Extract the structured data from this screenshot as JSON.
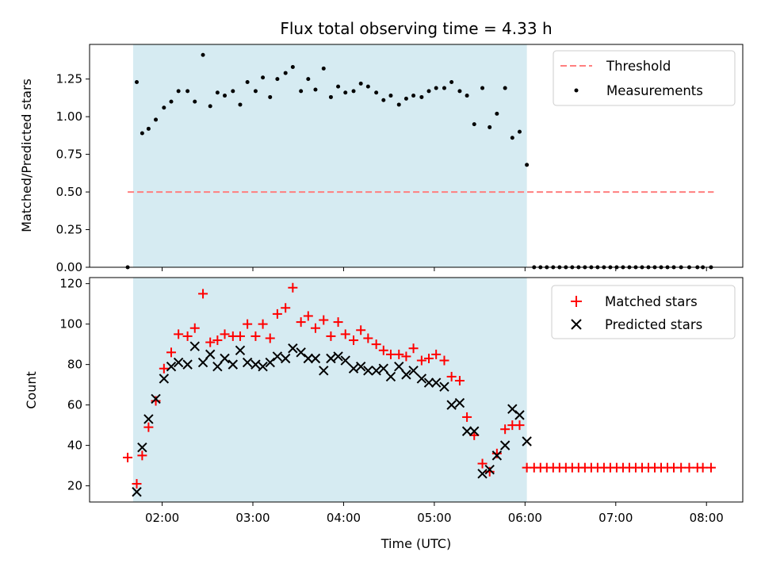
{
  "chart_data": [
    {
      "type": "scatter",
      "title": "Flux total observing time = 4.33 h",
      "ylabel": "Matched/Predicted stars",
      "xlabel": "",
      "xlim": [
        1.2,
        8.4
      ],
      "ylim": [
        0,
        1.48
      ],
      "yticks": [
        "0.00",
        "0.25",
        "0.50",
        "0.75",
        "1.00",
        "1.25"
      ],
      "yticks_values": [
        0,
        0.25,
        0.5,
        0.75,
        1.0,
        1.25
      ],
      "observing_window": [
        1.68,
        6.02
      ],
      "threshold": {
        "name": "Threshold",
        "value": 0.5,
        "x_range": [
          1.62,
          8.08
        ],
        "color": "#ff7f7f"
      },
      "series": [
        {
          "name": "Measurements",
          "color": "#000000",
          "marker": "dot",
          "x": [
            1.62,
            1.72,
            1.78,
            1.85,
            1.93,
            2.02,
            2.1,
            2.18,
            2.28,
            2.36,
            2.45,
            2.53,
            2.61,
            2.69,
            2.78,
            2.86,
            2.94,
            3.03,
            3.11,
            3.19,
            3.27,
            3.36,
            3.44,
            3.53,
            3.61,
            3.69,
            3.78,
            3.86,
            3.94,
            4.02,
            4.11,
            4.19,
            4.27,
            4.36,
            4.44,
            4.52,
            4.61,
            4.69,
            4.77,
            4.86,
            4.94,
            5.02,
            5.11,
            5.19,
            5.28,
            5.36,
            5.44,
            5.53,
            5.61,
            5.69,
            5.78,
            5.86,
            5.94,
            6.02
          ],
          "y": [
            0.0,
            1.23,
            0.89,
            0.92,
            0.98,
            1.06,
            1.1,
            1.17,
            1.17,
            1.1,
            1.41,
            1.07,
            1.16,
            1.14,
            1.17,
            1.08,
            1.23,
            1.17,
            1.26,
            1.13,
            1.25,
            1.29,
            1.33,
            1.17,
            1.25,
            1.18,
            1.32,
            1.13,
            1.2,
            1.16,
            1.17,
            1.22,
            1.2,
            1.16,
            1.11,
            1.14,
            1.08,
            1.12,
            1.14,
            1.13,
            1.17,
            1.19,
            1.19,
            1.23,
            1.17,
            1.14,
            0.95,
            1.19,
            0.93,
            1.02,
            1.19,
            0.86,
            0.9,
            0.68
          ]
        },
        {
          "name": "",
          "color": "#000000",
          "marker": "dot",
          "x": [
            6.1,
            6.17,
            6.24,
            6.31,
            6.38,
            6.45,
            6.52,
            6.59,
            6.66,
            6.73,
            6.8,
            6.87,
            6.94,
            7.01,
            7.08,
            7.15,
            7.22,
            7.29,
            7.36,
            7.43,
            7.5,
            7.57,
            7.64,
            7.72,
            7.81,
            7.9,
            7.96,
            8.05
          ],
          "y": [
            0,
            0,
            0,
            0,
            0,
            0,
            0,
            0,
            0,
            0,
            0,
            0,
            0,
            0,
            0,
            0,
            0,
            0,
            0,
            0,
            0,
            0,
            0,
            0,
            0,
            0,
            0,
            0
          ]
        }
      ],
      "legend_position": "upper-right"
    },
    {
      "type": "scatter",
      "title": "",
      "xlabel": "Time (UTC)",
      "ylabel": "Count",
      "xlim": [
        1.2,
        8.4
      ],
      "ylim": [
        12,
        123
      ],
      "xticks": [
        "02:00",
        "03:00",
        "04:00",
        "05:00",
        "06:00",
        "07:00",
        "08:00"
      ],
      "xticks_values": [
        2,
        3,
        4,
        5,
        6,
        7,
        8
      ],
      "yticks": [
        "20",
        "40",
        "60",
        "80",
        "100",
        "120"
      ],
      "yticks_values": [
        20,
        40,
        60,
        80,
        100,
        120
      ],
      "observing_window": [
        1.68,
        6.02
      ],
      "series": [
        {
          "name": "Matched stars",
          "color": "#ff0000",
          "marker": "plus",
          "x": [
            1.62,
            1.72,
            1.78,
            1.85,
            1.93,
            2.02,
            2.1,
            2.18,
            2.28,
            2.36,
            2.45,
            2.53,
            2.61,
            2.69,
            2.78,
            2.86,
            2.94,
            3.03,
            3.11,
            3.19,
            3.27,
            3.36,
            3.44,
            3.53,
            3.61,
            3.69,
            3.78,
            3.86,
            3.94,
            4.02,
            4.11,
            4.19,
            4.27,
            4.36,
            4.44,
            4.52,
            4.61,
            4.69,
            4.77,
            4.86,
            4.94,
            5.02,
            5.11,
            5.19,
            5.28,
            5.36,
            5.44,
            5.53,
            5.61,
            5.69,
            5.78,
            5.86,
            5.94,
            6.02,
            6.1,
            6.17,
            6.24,
            6.31,
            6.38,
            6.45,
            6.52,
            6.59,
            6.66,
            6.73,
            6.8,
            6.87,
            6.94,
            7.01,
            7.08,
            7.15,
            7.22,
            7.29,
            7.36,
            7.43,
            7.5,
            7.57,
            7.64,
            7.72,
            7.81,
            7.9,
            7.96,
            8.05
          ],
          "y": [
            34,
            21,
            35,
            49,
            62,
            78,
            86,
            95,
            94,
            98,
            115,
            91,
            92,
            95,
            94,
            94,
            100,
            94,
            100,
            93,
            105,
            108,
            118,
            101,
            104,
            98,
            102,
            94,
            101,
            95,
            92,
            97,
            93,
            90,
            87,
            85,
            85,
            84,
            88,
            82,
            83,
            85,
            82,
            74,
            72,
            54,
            45,
            31,
            27,
            36,
            48,
            50,
            50,
            29,
            29,
            29,
            29,
            29,
            29,
            29,
            29,
            29,
            29,
            29,
            29,
            29,
            29,
            29,
            29,
            29,
            29,
            29,
            29,
            29,
            29,
            29,
            29,
            29,
            29,
            29,
            29,
            29
          ]
        },
        {
          "name": "Predicted stars",
          "color": "#000000",
          "marker": "x",
          "x": [
            1.72,
            1.78,
            1.85,
            1.93,
            2.02,
            2.1,
            2.18,
            2.28,
            2.36,
            2.45,
            2.53,
            2.61,
            2.69,
            2.78,
            2.86,
            2.94,
            3.03,
            3.11,
            3.19,
            3.27,
            3.36,
            3.44,
            3.53,
            3.61,
            3.69,
            3.78,
            3.86,
            3.94,
            4.02,
            4.11,
            4.19,
            4.27,
            4.36,
            4.44,
            4.52,
            4.61,
            4.69,
            4.77,
            4.86,
            4.94,
            5.02,
            5.11,
            5.19,
            5.28,
            5.36,
            5.44,
            5.53,
            5.61,
            5.69,
            5.78,
            5.86,
            5.94,
            6.02
          ],
          "y": [
            17,
            39,
            53,
            63,
            73,
            79,
            81,
            80,
            89,
            81,
            85,
            79,
            83,
            80,
            87,
            81,
            80,
            79,
            81,
            84,
            83,
            88,
            86,
            83,
            83,
            77,
            83,
            84,
            82,
            78,
            79,
            77,
            77,
            78,
            74,
            79,
            75,
            77,
            73,
            71,
            71,
            69,
            60,
            61,
            47,
            47,
            26,
            28,
            35,
            40,
            58,
            55,
            42
          ]
        }
      ],
      "legend_position": "upper-right"
    }
  ]
}
